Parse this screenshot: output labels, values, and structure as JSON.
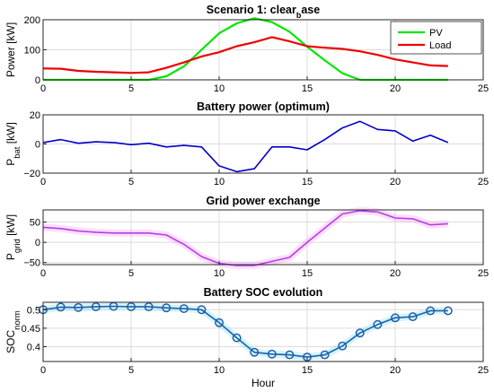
{
  "chart_data": [
    {
      "type": "line",
      "title": "Scenario 1: clear",
      "title_sub": "b",
      "title_tail": "ase",
      "ylabel": "Power [kW]",
      "xlabel": "",
      "xlim": [
        0,
        25
      ],
      "ylim": [
        0,
        200
      ],
      "xticks": [
        "0",
        "5",
        "10",
        "15",
        "20",
        "25"
      ],
      "yticks": [
        "0",
        "100",
        "200"
      ],
      "grid": true,
      "legend_position": "top-right",
      "x": [
        0,
        1,
        2,
        3,
        4,
        5,
        6,
        7,
        8,
        9,
        10,
        11,
        12,
        13,
        14,
        15,
        16,
        17,
        18,
        19,
        20,
        21,
        22,
        23
      ],
      "series": [
        {
          "name": "PV",
          "color": "#00e600",
          "values": [
            0,
            0,
            0,
            0,
            0,
            0,
            0,
            12,
            45,
            100,
            155,
            188,
            205,
            192,
            160,
            110,
            65,
            22,
            0,
            0,
            0,
            0,
            0,
            0
          ]
        },
        {
          "name": "Load",
          "color": "#ee0000",
          "values": [
            38,
            37,
            30,
            27,
            25,
            23,
            25,
            40,
            58,
            78,
            92,
            112,
            125,
            142,
            128,
            112,
            107,
            103,
            95,
            83,
            68,
            58,
            48,
            46
          ]
        }
      ]
    },
    {
      "type": "line",
      "title": "Battery power (optimum)",
      "ylabel": "P",
      "ylabel_sub": "bat",
      "ylabel_tail": " [kW]",
      "xlim": [
        0,
        25
      ],
      "ylim": [
        -20,
        20
      ],
      "xticks": [
        "0",
        "5",
        "10",
        "15",
        "20",
        "25"
      ],
      "yticks": [
        "-20",
        "0",
        "20"
      ],
      "grid": true,
      "x": [
        0,
        1,
        2,
        3,
        4,
        5,
        6,
        7,
        8,
        9,
        10,
        11,
        12,
        13,
        14,
        15,
        16,
        17,
        18,
        19,
        20,
        21,
        22,
        23
      ],
      "series": [
        {
          "color": "#0000cc",
          "values": [
            1,
            3,
            0.5,
            1.5,
            1,
            -0.5,
            0.5,
            -2,
            -1,
            -2,
            -15,
            -19,
            -17,
            -2,
            -2,
            -4,
            3,
            11,
            15.5,
            10,
            9,
            2,
            6,
            1
          ]
        }
      ]
    },
    {
      "type": "line",
      "title": "Grid power exchange",
      "ylabel": "P",
      "ylabel_sub": "grid",
      "ylabel_tail": " [kW]",
      "xlim": [
        0,
        25
      ],
      "ylim": [
        -55,
        80
      ],
      "xticks": [
        "0",
        "5",
        "10",
        "15",
        "20",
        "25"
      ],
      "yticks": [
        "-50",
        "0",
        "50"
      ],
      "grid": true,
      "x": [
        0,
        1,
        2,
        3,
        4,
        5,
        6,
        7,
        8,
        9,
        10,
        11,
        12,
        13,
        14,
        15,
        16,
        17,
        18,
        19,
        20,
        21,
        22,
        23
      ],
      "series": [
        {
          "color": "#b040e0",
          "values": [
            37,
            34,
            28,
            25,
            23,
            23,
            23,
            18,
            -5,
            -35,
            -52,
            -57,
            -57,
            -47,
            -37,
            0,
            35,
            70,
            78,
            75,
            60,
            58,
            43,
            46
          ]
        }
      ]
    },
    {
      "type": "line",
      "title": "Battery SOC evolution",
      "ylabel": "SOC",
      "ylabel_sub": "norm",
      "xlabel": "Hour",
      "xlim": [
        0,
        25
      ],
      "ylim": [
        0.36,
        0.52
      ],
      "xticks": [
        "0",
        "5",
        "10",
        "15",
        "20",
        "25"
      ],
      "yticks": [
        "0.4",
        "0.45",
        "0.5"
      ],
      "grid": true,
      "markers": "circle",
      "x": [
        0,
        1,
        2,
        3,
        4,
        5,
        6,
        7,
        8,
        9,
        10,
        11,
        12,
        13,
        14,
        15,
        16,
        17,
        18,
        19,
        20,
        21,
        22,
        23
      ],
      "series": [
        {
          "color": "#1f5fa8",
          "values": [
            0.5,
            0.507,
            0.506,
            0.508,
            0.509,
            0.508,
            0.508,
            0.505,
            0.503,
            0.5,
            0.465,
            0.424,
            0.385,
            0.38,
            0.378,
            0.372,
            0.378,
            0.402,
            0.437,
            0.46,
            0.478,
            0.481,
            0.497,
            0.497
          ]
        }
      ]
    }
  ]
}
